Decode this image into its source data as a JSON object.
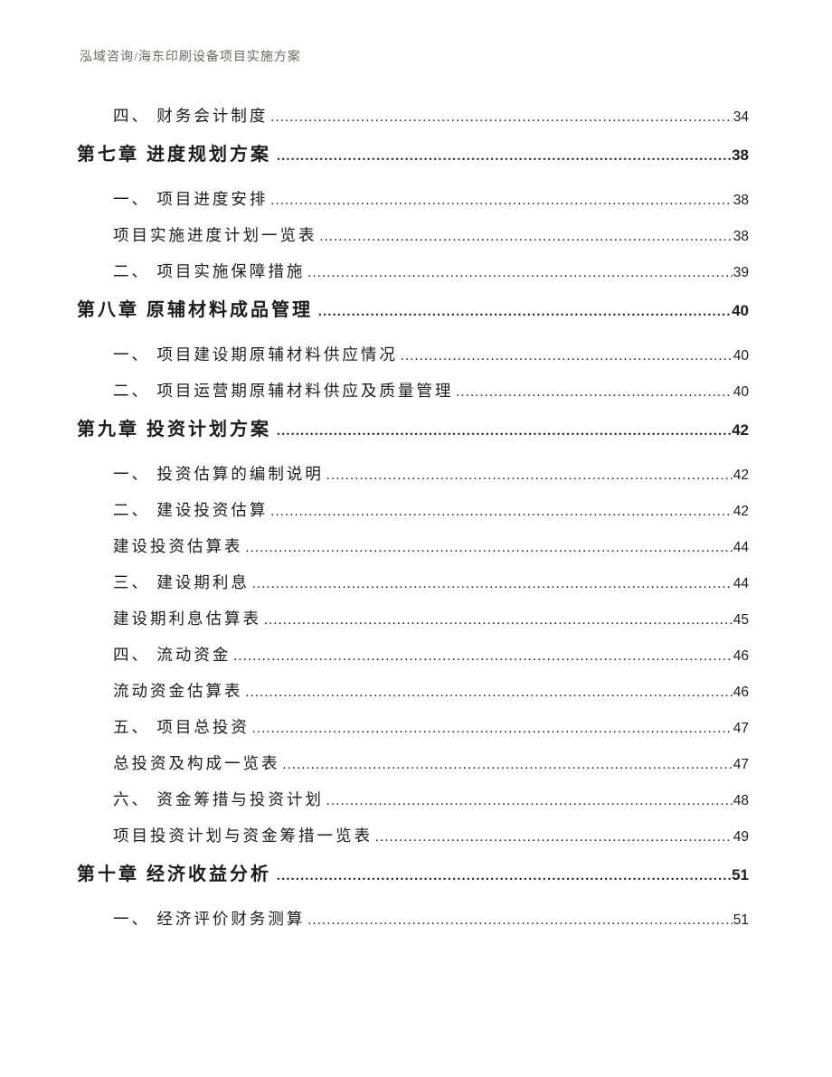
{
  "header": {
    "title": "泓域咨询/海东印刷设备项目实施方案"
  },
  "colors": {
    "header_text": "#6F675E",
    "body_text": "#1C1C1C",
    "page_background": "#FFFFFF"
  },
  "toc": {
    "entries": [
      {
        "level": "sub",
        "text": "四、 财务会计制度",
        "page": "34"
      },
      {
        "level": "chapter",
        "text": "第七章 进度规划方案",
        "page": "38"
      },
      {
        "level": "sub",
        "text": "一、 项目进度安排",
        "page": "38"
      },
      {
        "level": "table",
        "text": "项目实施进度计划一览表",
        "page": "38"
      },
      {
        "level": "sub",
        "text": "二、 项目实施保障措施",
        "page": "39"
      },
      {
        "level": "chapter",
        "text": "第八章 原辅材料成品管理",
        "page": "40"
      },
      {
        "level": "sub",
        "text": "一、 项目建设期原辅材料供应情况",
        "page": "40"
      },
      {
        "level": "sub",
        "text": "二、 项目运营期原辅材料供应及质量管理",
        "page": "40"
      },
      {
        "level": "chapter",
        "text": "第九章 投资计划方案",
        "page": "42"
      },
      {
        "level": "sub",
        "text": "一、 投资估算的编制说明",
        "page": "42"
      },
      {
        "level": "sub",
        "text": "二、 建设投资估算",
        "page": "42"
      },
      {
        "level": "table",
        "text": "建设投资估算表",
        "page": "44"
      },
      {
        "level": "sub",
        "text": "三、 建设期利息",
        "page": "44"
      },
      {
        "level": "table",
        "text": "建设期利息估算表",
        "page": "45"
      },
      {
        "level": "sub",
        "text": "四、 流动资金",
        "page": "46"
      },
      {
        "level": "table",
        "text": "流动资金估算表",
        "page": "46"
      },
      {
        "level": "sub",
        "text": "五、 项目总投资",
        "page": "47"
      },
      {
        "level": "table",
        "text": "总投资及构成一览表",
        "page": "47"
      },
      {
        "level": "sub",
        "text": "六、 资金筹措与投资计划",
        "page": "48"
      },
      {
        "level": "table",
        "text": "项目投资计划与资金筹措一览表",
        "page": "49"
      },
      {
        "level": "chapter",
        "text": "第十章 经济收益分析",
        "page": "51"
      },
      {
        "level": "sub",
        "text": "一、 经济评价财务测算",
        "page": "51"
      }
    ]
  }
}
